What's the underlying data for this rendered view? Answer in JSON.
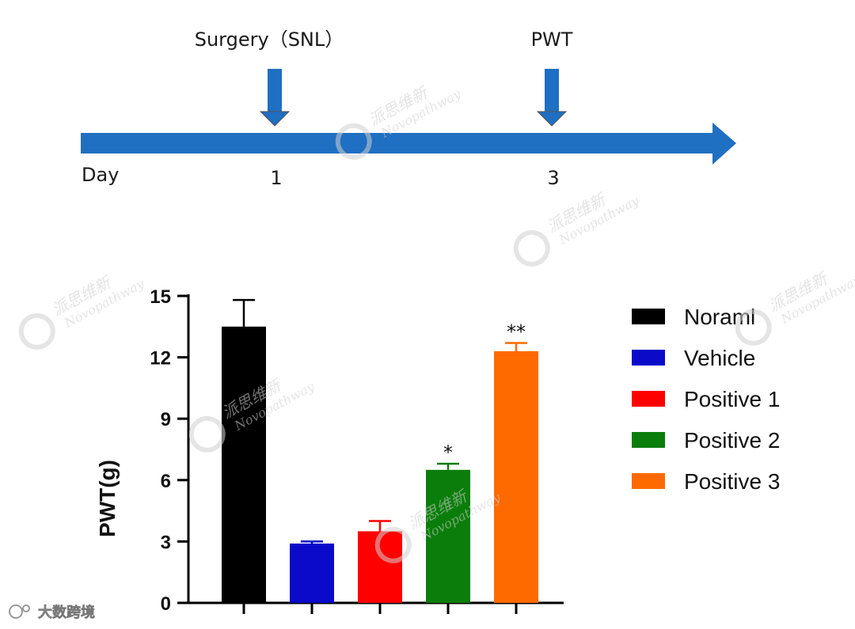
{
  "timeline": {
    "axis_label": "Day",
    "color": "#1f6fc2",
    "events": [
      {
        "label": "Surgery（SNL）",
        "day": "1"
      },
      {
        "label": "PWT",
        "day": "3"
      }
    ]
  },
  "chart_data": {
    "type": "bar",
    "title": "",
    "xlabel": "",
    "ylabel": "PWT(g)",
    "ylim": [
      0,
      15
    ],
    "yticks": [
      "0",
      "3",
      "6",
      "9",
      "12",
      "15"
    ],
    "categories": [
      "Noraml",
      "Vehicle",
      "Positive 1",
      "Positive 2",
      "Positive 3"
    ],
    "values": [
      13.5,
      2.9,
      3.5,
      6.5,
      12.3
    ],
    "errors": [
      1.3,
      0.1,
      0.5,
      0.3,
      0.4
    ],
    "colors": [
      "#000000",
      "#0a0ac8",
      "#ff0000",
      "#0a7d0a",
      "#ff6a00"
    ],
    "significance": [
      "",
      "",
      "",
      "*",
      "**"
    ],
    "legend_position": "right",
    "grid": false
  },
  "watermark": {
    "brand_cn": "派思维新",
    "brand_en": "Novopathway"
  },
  "corner_mark": "大数跨境"
}
